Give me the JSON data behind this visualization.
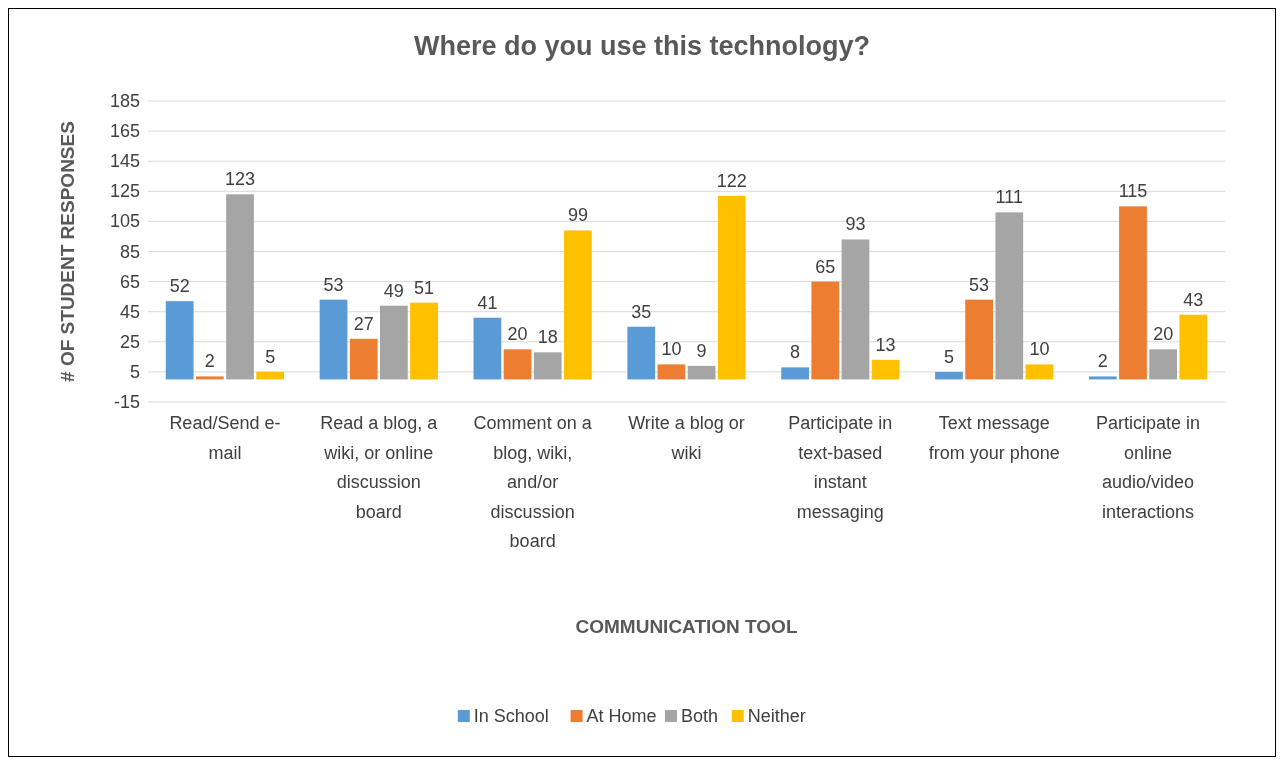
{
  "chart_data": {
    "type": "bar",
    "title": "Where do you use this technology?",
    "xlabel": "COMMUNICATION TOOL",
    "ylabel": "# OF STUDENT RESPONSES",
    "categories": [
      "Read/Send e-mail",
      "Read a blog, a wiki, or online discussion board",
      "Comment on a blog, wiki, and/or discussion board",
      "Write a blog or wiki",
      "Participate in text-based instant messaging",
      "Text message from your phone",
      "Participate in online audio/video interactions"
    ],
    "series": [
      {
        "name": "In School",
        "color": "#5b9bd5",
        "values": [
          52,
          53,
          41,
          35,
          8,
          5,
          2
        ]
      },
      {
        "name": "At Home",
        "color": "#ed7d31",
        "values": [
          2,
          27,
          20,
          10,
          65,
          53,
          115
        ]
      },
      {
        "name": "Both",
        "color": "#a5a5a5",
        "values": [
          123,
          49,
          18,
          9,
          93,
          111,
          20
        ]
      },
      {
        "name": "Neither",
        "color": "#ffc000",
        "values": [
          5,
          51,
          99,
          122,
          13,
          10,
          43
        ]
      }
    ],
    "ylim": [
      -15,
      185
    ],
    "yticks": [
      -15,
      5,
      25,
      45,
      65,
      85,
      105,
      125,
      145,
      165,
      185
    ],
    "grid": "y",
    "legend": "bottom",
    "data_labels": true
  }
}
